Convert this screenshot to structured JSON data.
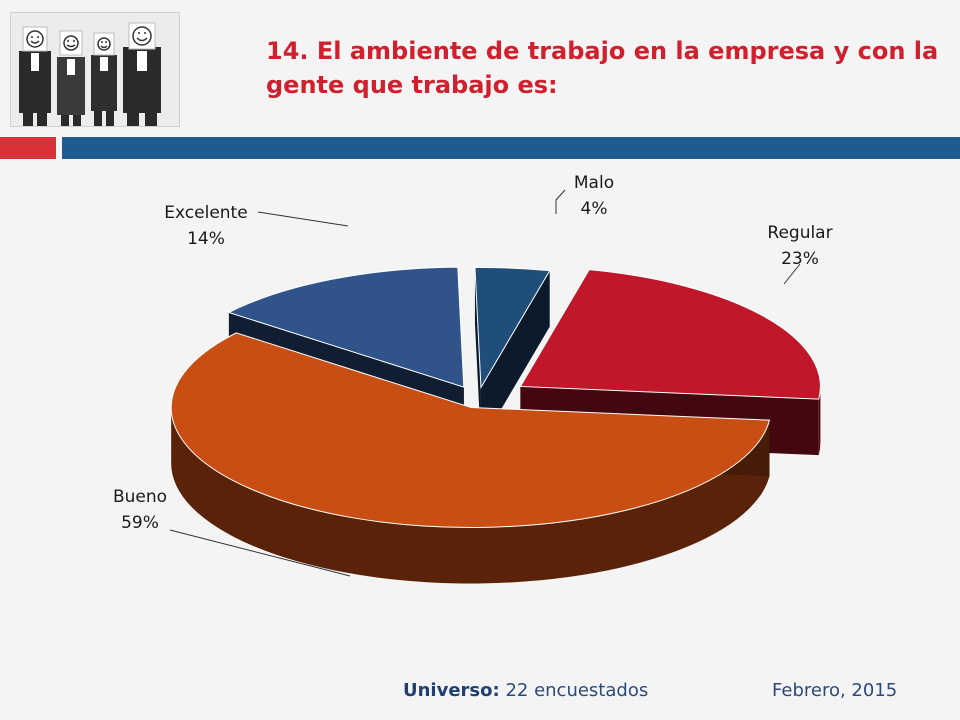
{
  "header": {
    "title": "14. El ambiente de trabajo en la empresa y con la gente que trabajo es:"
  },
  "footer": {
    "universe_label": "Universo:",
    "universe_value": "22 encuestados",
    "date": "Febrero, 2015"
  },
  "chart_data": {
    "type": "pie",
    "style": "3d-exploded",
    "slices": [
      {
        "label": "Malo",
        "value": 4,
        "display": "4%",
        "color": "#1f4e7a"
      },
      {
        "label": "Regular",
        "value": 23,
        "display": "23%",
        "color": "#c0182a"
      },
      {
        "label": "Bueno",
        "value": 59,
        "display": "59%",
        "color": "#c94e14"
      },
      {
        "label": "Excelente",
        "value": 14,
        "display": "14%",
        "color": "#30538a"
      }
    ]
  }
}
